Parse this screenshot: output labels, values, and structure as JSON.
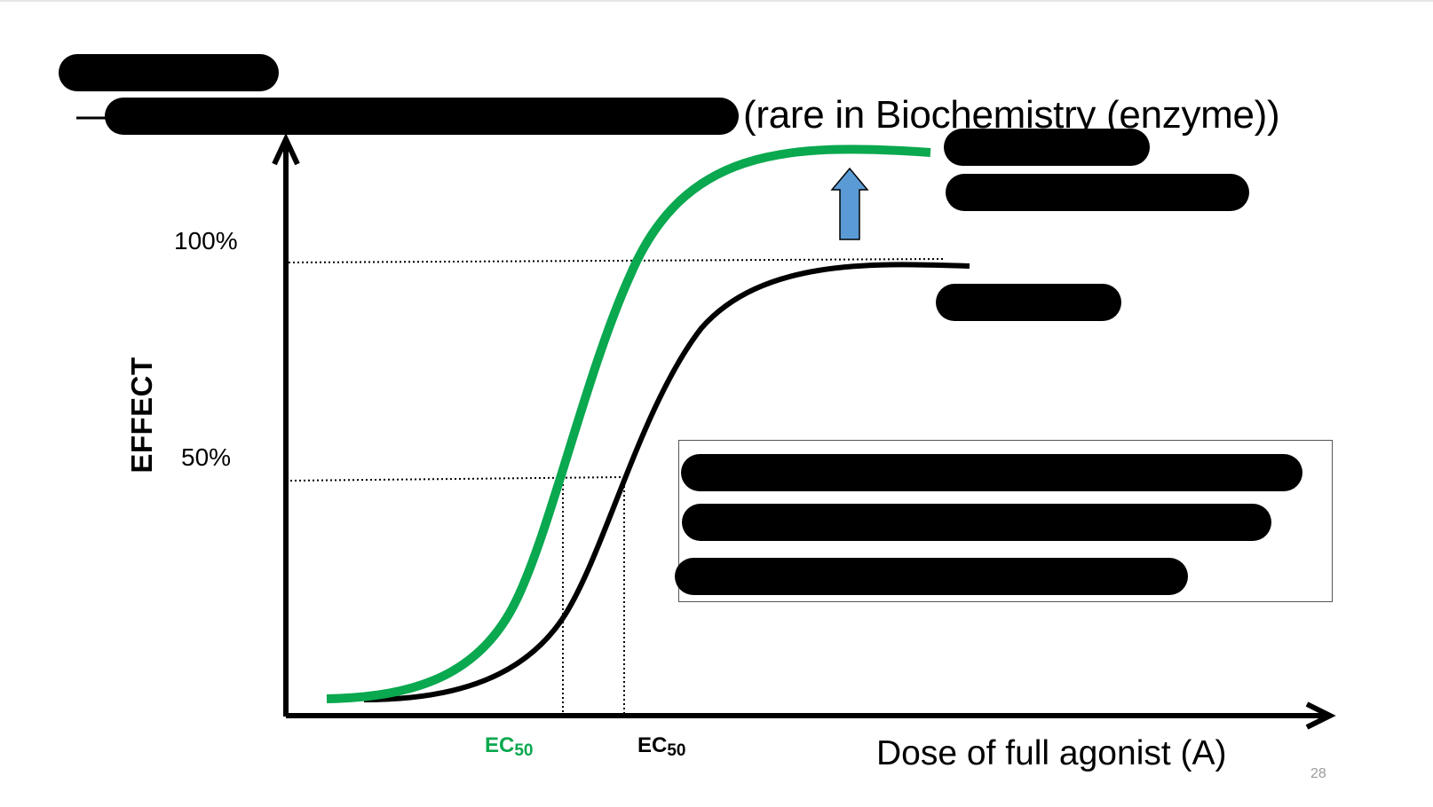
{
  "slide": {
    "subtitle_visible": "(rare in Biochemistry (enzyme))",
    "page_number": "28"
  },
  "diagram": {
    "y_axis_label": "EFFECT",
    "y_ticks": [
      "100%",
      "50%"
    ],
    "x_axis_label": "Dose of full agonist (A)",
    "ec50_labels": {
      "green": {
        "main": "EC",
        "sub": "50"
      },
      "black": {
        "main": "EC",
        "sub": "50"
      }
    },
    "colors": {
      "green_curve": "#0aa84f",
      "black_curve": "#000000",
      "arrow_fill": "#5b9bd5"
    },
    "icons": [
      "up-arrow-icon"
    ]
  }
}
